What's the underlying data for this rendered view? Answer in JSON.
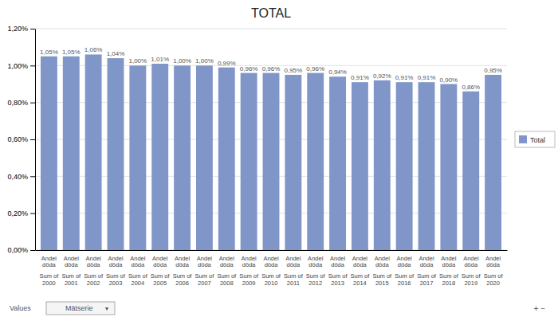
{
  "chart_data": {
    "type": "bar",
    "title": "TOTAL",
    "categories": [
      "Andel\ndöda\nSum of\n2000",
      "Andel\ndöda\nSum of\n2001",
      "Andel\ndöda\nSum of\n2002",
      "Andel\ndöda\nSum of\n2003",
      "Andel\ndöda\nSum of\n2004",
      "Andel\ndöda\nSum of\n2005",
      "Andel\ndöda\nSum of\n2006",
      "Andel\ndöda\nSum of\n2007",
      "Andel\ndöda\nSum of\n2008",
      "Andel\ndöda\nSum of\n2009",
      "Andel\ndöda\nSum of\n2010",
      "Andel\ndöda\nSum of\n2011",
      "Andel\ndöda\nSum of\n2012",
      "Andel\ndöda\nSum of\n2013",
      "Andel\ndöda\nSum of\n2014",
      "Andel\ndöda\nSum of\n2015",
      "Andel\ndöda\nSum of\n2016",
      "Andel\ndöda\nSum of\n2017",
      "Andel\ndöda\nSum of\n2018",
      "Andel\ndöda\nSum of\n2019",
      "Andel\ndöda\nSum of\n2020"
    ],
    "series": [
      {
        "name": "Total",
        "color": "#8096c8",
        "values": [
          0.0105,
          0.0105,
          0.0106,
          0.0104,
          0.01,
          0.0101,
          0.01,
          0.01,
          0.0099,
          0.0096,
          0.0096,
          0.0095,
          0.0096,
          0.0094,
          0.0091,
          0.0092,
          0.0091,
          0.0091,
          0.009,
          0.0086,
          0.0095
        ],
        "value_labels": [
          "1,05%",
          "1,05%",
          "1,06%",
          "1,04%",
          "1,00%",
          "1,01%",
          "1,00%",
          "1,00%",
          "0,99%",
          "0,96%",
          "0,96%",
          "0,95%",
          "0,96%",
          "0,94%",
          "0,91%",
          "0,92%",
          "0,91%",
          "0,91%",
          "0,90%",
          "0,86%",
          "0,95%"
        ]
      }
    ],
    "ylim": [
      0,
      0.012
    ],
    "yticks": [
      {
        "value": 0,
        "label": "0,00%"
      },
      {
        "value": 0.002,
        "label": "0,20%"
      },
      {
        "value": 0.004,
        "label": "0,40%"
      },
      {
        "value": 0.006,
        "label": "0,60%"
      },
      {
        "value": 0.008,
        "label": "0,80%"
      },
      {
        "value": 0.01,
        "label": "1,00%"
      },
      {
        "value": 0.012,
        "label": "1,20%"
      }
    ],
    "grid": true,
    "legend": "right",
    "data_labels": true,
    "annotations": [
      "Values",
      "Mätserie",
      "▼",
      "+ −"
    ]
  }
}
